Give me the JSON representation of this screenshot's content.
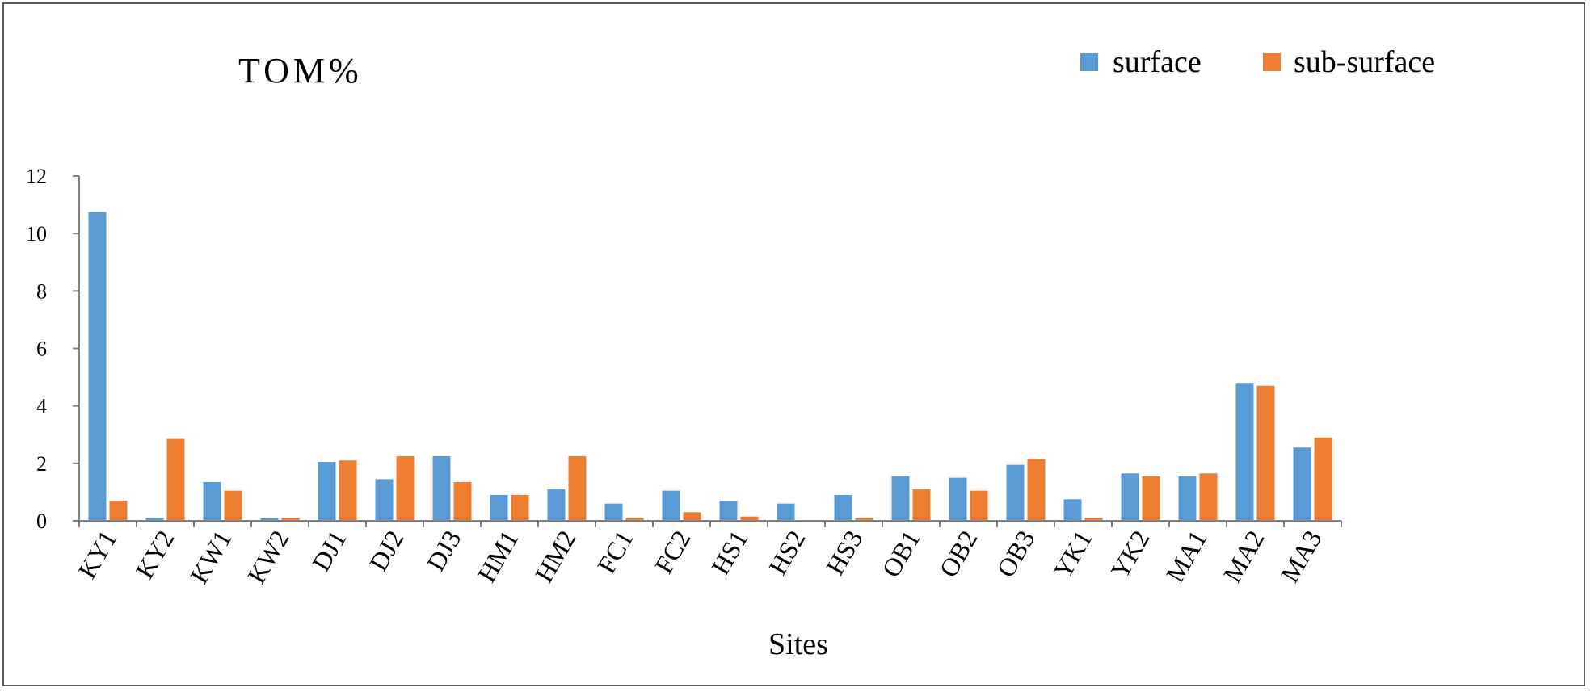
{
  "chart_data": {
    "type": "bar",
    "title": "TOM%",
    "xlabel": "Sites",
    "ylabel": "",
    "ylim": [
      0,
      12
    ],
    "yticks": [
      0,
      2,
      4,
      6,
      8,
      10,
      12
    ],
    "legend_position": "top-right",
    "grid": false,
    "categories": [
      "KY1",
      "KY2",
      "KW1",
      "KW2",
      "DJ1",
      "DJ2",
      "DJ3",
      "HM1",
      "HM2",
      "FC1",
      "FC2",
      "HS1",
      "HS2",
      "HS3",
      "OB1",
      "OB2",
      "OB3",
      "YK1",
      "YK2",
      "MA1",
      "MA2",
      "MA3"
    ],
    "series": [
      {
        "name": "surface",
        "color": "#5B9BD5",
        "values": [
          10.75,
          0.1,
          1.35,
          0.1,
          2.05,
          1.45,
          2.25,
          0.9,
          1.1,
          0.6,
          1.05,
          0.7,
          0.6,
          0.9,
          1.55,
          1.5,
          1.95,
          0.75,
          1.65,
          1.55,
          4.8,
          2.55
        ]
      },
      {
        "name": "sub-surface",
        "color": "#ED7D31",
        "values": [
          0.7,
          2.85,
          1.05,
          0.1,
          2.1,
          2.25,
          1.35,
          0.9,
          2.25,
          0.1,
          0.3,
          0.15,
          0.0,
          0.1,
          1.1,
          1.05,
          2.15,
          0.1,
          1.55,
          1.65,
          4.7,
          2.9
        ]
      }
    ]
  }
}
